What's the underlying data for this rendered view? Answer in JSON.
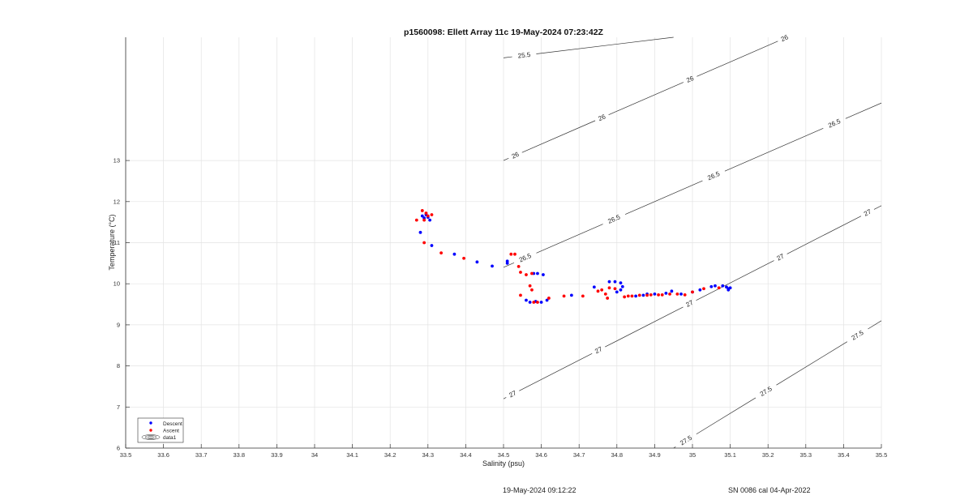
{
  "chart_data": {
    "type": "scatter",
    "title": "p1560098: Ellett Array 11c 19-May-2024 07:23:42Z",
    "xlabel": "Salinity (psu)",
    "ylabel": "Temperature (°C)",
    "xlim": [
      33.5,
      35.5
    ],
    "ylim": [
      6,
      16
    ],
    "x_ticks": [
      33.5,
      33.6,
      33.7,
      33.8,
      33.9,
      34,
      34.1,
      34.2,
      34.3,
      34.4,
      34.5,
      34.6,
      34.7,
      34.8,
      34.9,
      35,
      35.1,
      35.2,
      35.3,
      35.4,
      35.5
    ],
    "x_tick_labels": [
      "33.5",
      "33.6",
      "33.7",
      "33.8",
      "33.9",
      "34",
      "34.1",
      "34.2",
      "34.3",
      "34.4",
      "34.5",
      "34.6",
      "34.7",
      "34.8",
      "34.9",
      "35",
      "35.1",
      "35.2",
      "35.3",
      "35.4",
      "35.5"
    ],
    "y_ticks": [
      6,
      7,
      8,
      9,
      10,
      11,
      12,
      13
    ],
    "y_tick_labels": [
      "6",
      "7",
      "8",
      "9",
      "10",
      "11",
      "12",
      "13"
    ],
    "grid": true,
    "legend_position": "bottom-left",
    "legend": [
      {
        "label": "Descent",
        "color": "#0000ff",
        "marker": "dot"
      },
      {
        "label": "Ascent",
        "color": "#ff0000",
        "marker": "dot"
      },
      {
        "label": "data1",
        "color": "#000000",
        "marker": "contour"
      }
    ],
    "series": [
      {
        "name": "Descent",
        "color": "#0000ff",
        "points": [
          [
            34.285,
            11.65
          ],
          [
            34.29,
            11.6
          ],
          [
            34.3,
            11.62
          ],
          [
            34.295,
            11.68
          ],
          [
            34.305,
            11.55
          ],
          [
            34.28,
            11.25
          ],
          [
            34.31,
            10.93
          ],
          [
            34.37,
            10.72
          ],
          [
            34.43,
            10.53
          ],
          [
            34.47,
            10.43
          ],
          [
            34.51,
            10.55
          ],
          [
            34.51,
            10.5
          ],
          [
            34.58,
            10.25
          ],
          [
            34.59,
            10.25
          ],
          [
            34.605,
            10.22
          ],
          [
            34.56,
            9.6
          ],
          [
            34.57,
            9.55
          ],
          [
            34.585,
            9.57
          ],
          [
            34.6,
            9.55
          ],
          [
            34.615,
            9.6
          ],
          [
            34.68,
            9.72
          ],
          [
            34.74,
            9.92
          ],
          [
            34.78,
            10.05
          ],
          [
            34.795,
            10.05
          ],
          [
            34.81,
            10.02
          ],
          [
            34.81,
            9.85
          ],
          [
            34.815,
            9.93
          ],
          [
            34.8,
            9.8
          ],
          [
            34.85,
            9.7
          ],
          [
            34.87,
            9.72
          ],
          [
            34.88,
            9.75
          ],
          [
            34.9,
            9.75
          ],
          [
            34.93,
            9.77
          ],
          [
            34.945,
            9.82
          ],
          [
            34.97,
            9.75
          ],
          [
            35.0,
            9.8
          ],
          [
            35.02,
            9.85
          ],
          [
            35.05,
            9.93
          ],
          [
            35.06,
            9.95
          ],
          [
            35.08,
            9.95
          ],
          [
            35.09,
            9.92
          ],
          [
            35.095,
            9.88
          ],
          [
            35.1,
            9.9
          ],
          [
            35.095,
            9.85
          ]
        ]
      },
      {
        "name": "Ascent",
        "color": "#ff0000",
        "points": [
          [
            34.27,
            11.55
          ],
          [
            34.285,
            11.78
          ],
          [
            34.295,
            11.72
          ],
          [
            34.3,
            11.65
          ],
          [
            34.31,
            11.68
          ],
          [
            34.29,
            11.55
          ],
          [
            34.29,
            11.0
          ],
          [
            34.335,
            10.75
          ],
          [
            34.395,
            10.62
          ],
          [
            34.52,
            10.72
          ],
          [
            34.53,
            10.72
          ],
          [
            34.54,
            10.42
          ],
          [
            34.545,
            10.28
          ],
          [
            34.56,
            10.22
          ],
          [
            34.575,
            10.25
          ],
          [
            34.545,
            9.72
          ],
          [
            34.57,
            9.95
          ],
          [
            34.575,
            9.85
          ],
          [
            34.58,
            9.55
          ],
          [
            34.59,
            9.55
          ],
          [
            34.62,
            9.65
          ],
          [
            34.66,
            9.7
          ],
          [
            34.71,
            9.7
          ],
          [
            34.75,
            9.82
          ],
          [
            34.76,
            9.85
          ],
          [
            34.77,
            9.75
          ],
          [
            34.775,
            9.65
          ],
          [
            34.78,
            9.9
          ],
          [
            34.795,
            9.88
          ],
          [
            34.82,
            9.68
          ],
          [
            34.83,
            9.7
          ],
          [
            34.84,
            9.7
          ],
          [
            34.86,
            9.72
          ],
          [
            34.88,
            9.72
          ],
          [
            34.89,
            9.73
          ],
          [
            34.91,
            9.73
          ],
          [
            34.92,
            9.73
          ],
          [
            34.94,
            9.75
          ],
          [
            34.96,
            9.75
          ],
          [
            34.98,
            9.73
          ],
          [
            35.0,
            9.8
          ],
          [
            35.03,
            9.88
          ],
          [
            35.07,
            9.9
          ]
        ]
      }
    ],
    "isopycnals": [
      {
        "label": "25.5",
        "start": [
          34.5,
          15.5
        ],
        "end": [
          34.95,
          16.0
        ],
        "labels": [
          [
            34.555,
            15.54,
            "25.5"
          ]
        ]
      },
      {
        "label": "26",
        "start": [
          34.5,
          13.0
        ],
        "end": [
          35.25,
          16.0
        ],
        "labels": [
          [
            34.53,
            13.15,
            "26"
          ],
          [
            34.76,
            14.05,
            "26"
          ],
          [
            34.995,
            14.95,
            "26"
          ],
          [
            35.245,
            15.95,
            "26"
          ]
        ]
      },
      {
        "label": "26.5",
        "start": [
          34.5,
          10.4
        ],
        "end": [
          35.5,
          14.4
        ],
        "labels": [
          [
            34.555,
            10.68,
            "26.5"
          ],
          [
            34.785,
            11.73,
            "26.5"
          ],
          [
            35.055,
            12.65,
            "26.5"
          ],
          [
            35.39,
            13.6,
            "26.5"
          ]
        ]
      },
      {
        "label": "27",
        "start": [
          34.5,
          7.2
        ],
        "end": [
          35.5,
          11.9
        ],
        "labels": [
          [
            34.525,
            7.3,
            "27"
          ],
          [
            34.745,
            8.5,
            "27"
          ],
          [
            34.985,
            9.65,
            "27"
          ],
          [
            35.23,
            10.7,
            "27"
          ],
          [
            35.465,
            11.7,
            "27"
          ]
        ]
      },
      {
        "label": "27.5",
        "start": [
          34.95,
          6.0
        ],
        "end": [
          35.5,
          9.1
        ],
        "labels": [
          [
            34.98,
            6.23,
            "27.5"
          ],
          [
            35.19,
            7.45,
            "27.5"
          ],
          [
            35.44,
            8.7,
            "27.5"
          ]
        ]
      }
    ]
  },
  "footer": {
    "left": "19-May-2024 09:12:22",
    "right": "SN 0086 cal 04-Apr-2022"
  }
}
